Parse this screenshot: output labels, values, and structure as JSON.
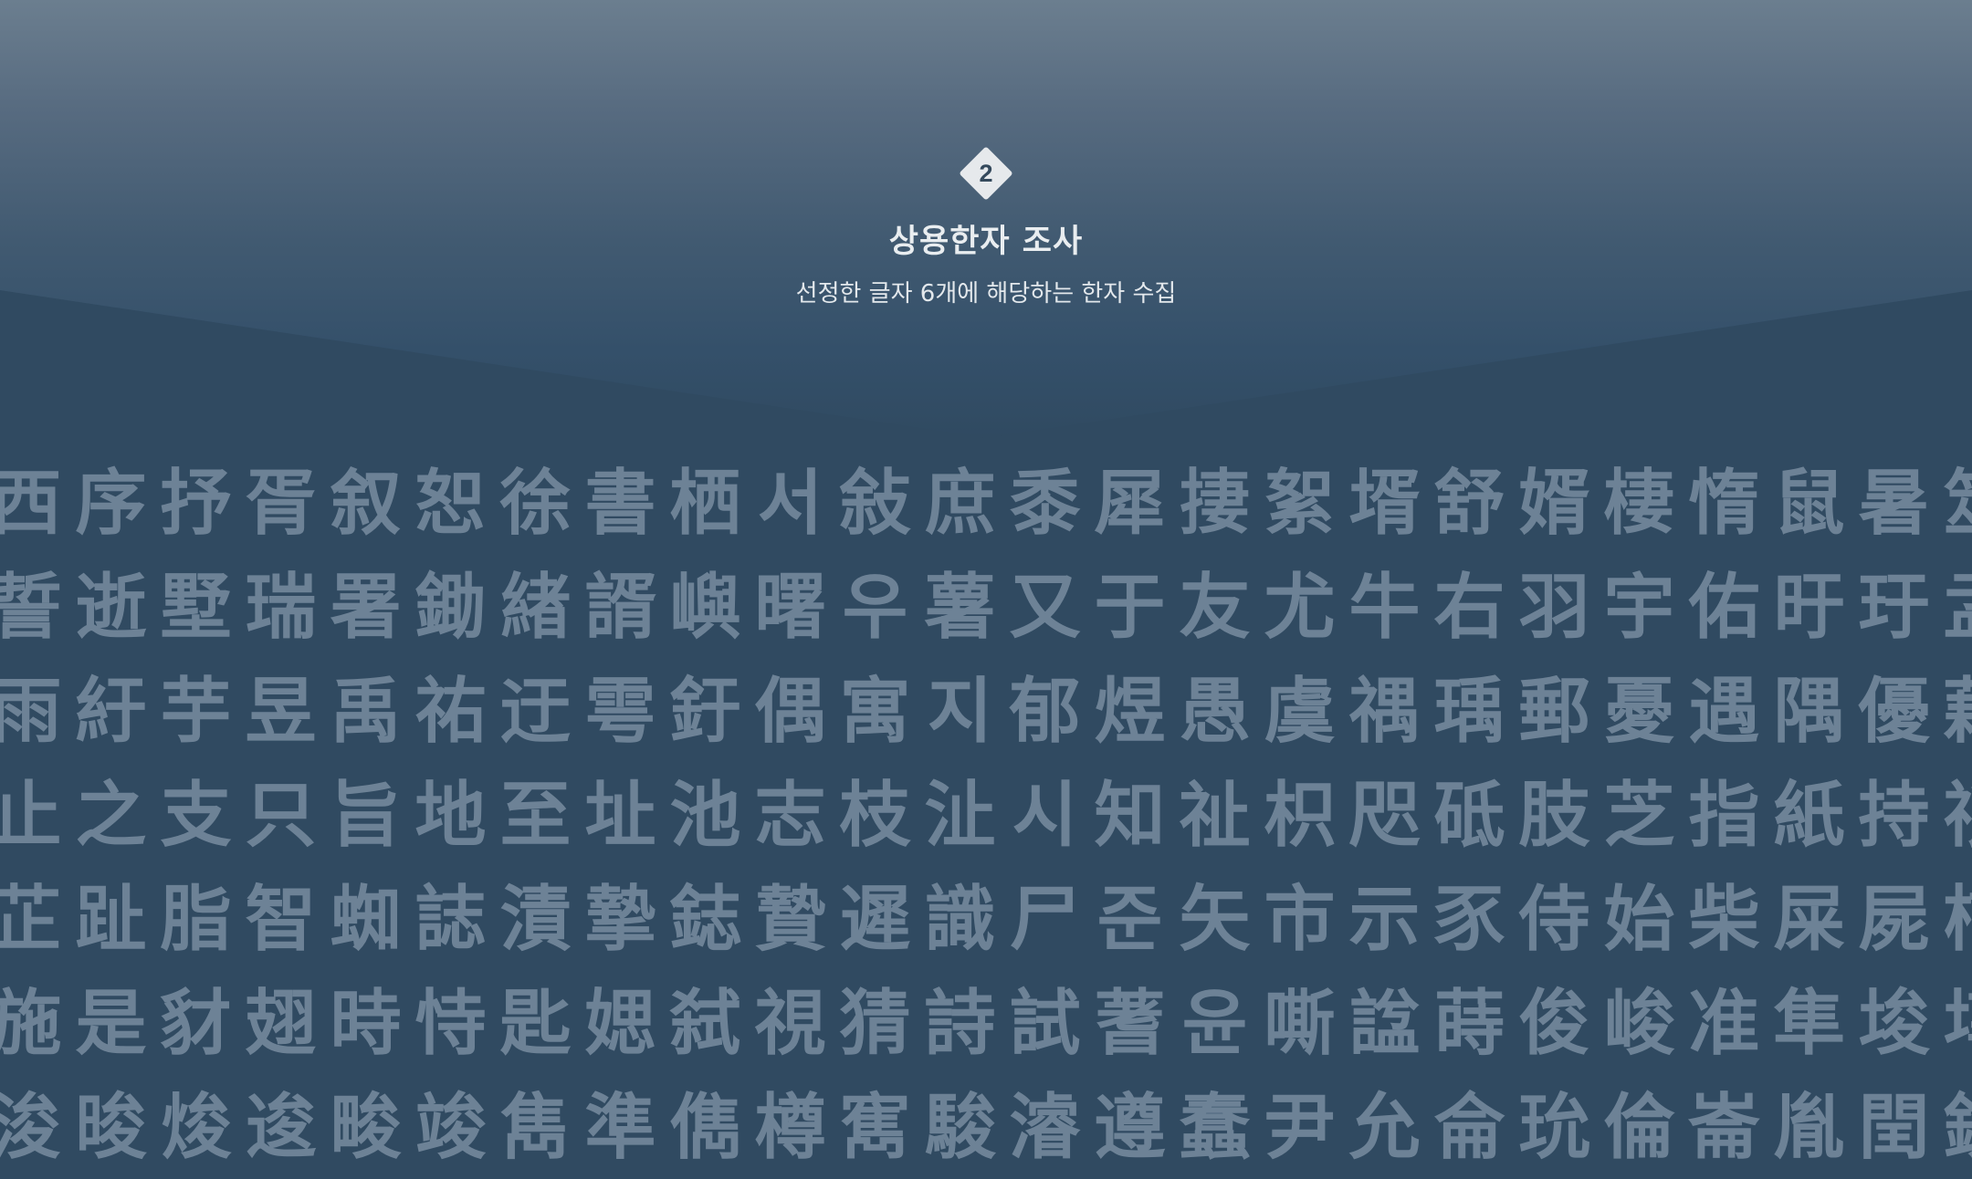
{
  "step": {
    "number": "2",
    "title": "상용한자 조사",
    "subtitle": "선정한 글자 6개에 해당하는 한자 수집"
  },
  "colors": {
    "background": "#304a61",
    "gradient_top": "#6b7e8f",
    "character": "#6d8296",
    "badge": "#e6e9ec"
  },
  "character_rows": [
    [
      "西",
      "序",
      "抒",
      "胥",
      "叙",
      "恕",
      "徐",
      "書",
      "栖",
      "서",
      "敍",
      "庶",
      "黍",
      "犀",
      "捿",
      "絮",
      "壻",
      "舒",
      "婿",
      "棲",
      "惰",
      "鼠",
      "暑",
      "筮"
    ],
    [
      "誓",
      "逝",
      "墅",
      "瑞",
      "署",
      "鋤",
      "緖",
      "諝",
      "嶼",
      "曙",
      "우",
      "薯",
      "又",
      "于",
      "友",
      "尤",
      "牛",
      "右",
      "羽",
      "宇",
      "佑",
      "旴",
      "玗",
      "盂"
    ],
    [
      "雨",
      "紆",
      "芋",
      "昱",
      "禹",
      "祐",
      "迂",
      "雩",
      "釪",
      "偶",
      "寓",
      "지",
      "郁",
      "煜",
      "愚",
      "虞",
      "禑",
      "瑀",
      "郵",
      "憂",
      "遇",
      "隅",
      "優",
      "藕"
    ],
    [
      "止",
      "之",
      "支",
      "只",
      "旨",
      "地",
      "至",
      "址",
      "池",
      "志",
      "枝",
      "沚",
      "시",
      "知",
      "祉",
      "枳",
      "咫",
      "砥",
      "肢",
      "芝",
      "指",
      "紙",
      "持",
      "祗"
    ],
    [
      "芷",
      "趾",
      "脂",
      "智",
      "蜘",
      "誌",
      "漬",
      "摯",
      "鋕",
      "贄",
      "遲",
      "識",
      "尸",
      "준",
      "矢",
      "市",
      "示",
      "豕",
      "侍",
      "始",
      "柴",
      "屎",
      "屍",
      "柿"
    ],
    [
      "施",
      "是",
      "豺",
      "翅",
      "時",
      "恃",
      "匙",
      "媤",
      "弑",
      "視",
      "猜",
      "詩",
      "試",
      "蓍",
      "윤",
      "嘶",
      "諡",
      "蒔",
      "俊",
      "峻",
      "准",
      "隼",
      "埈",
      "埻"
    ],
    [
      "浚",
      "晙",
      "焌",
      "逡",
      "畯",
      "竣",
      "雋",
      "準",
      "儁",
      "樽",
      "寯",
      "駿",
      "濬",
      "遵",
      "蠢",
      "尹",
      "允",
      "侖",
      "玧",
      "倫",
      "崙",
      "胤",
      "閏",
      "鈗"
    ]
  ]
}
